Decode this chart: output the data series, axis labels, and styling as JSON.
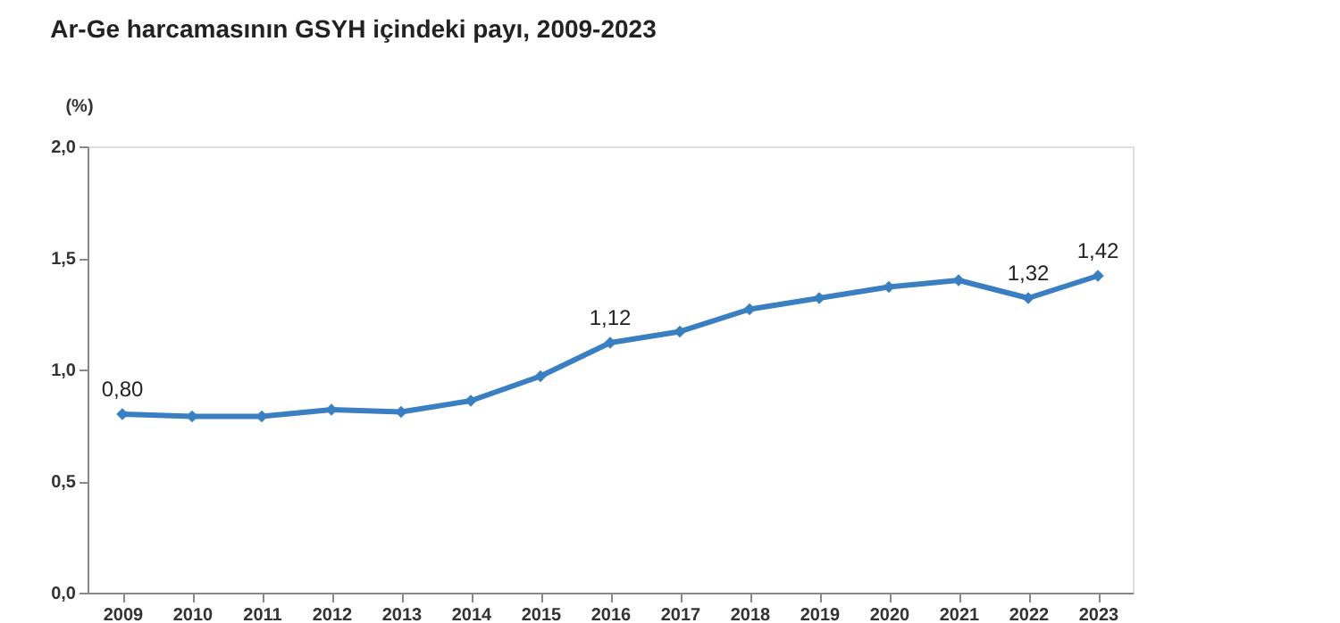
{
  "chart_data": {
    "type": "line",
    "title": "Ar-Ge harcamasının GSYH içindeki payı, 2009-2023",
    "ylabel": "(%)",
    "categories": [
      "2009",
      "2010",
      "2011",
      "2012",
      "2013",
      "2014",
      "2015",
      "2016",
      "2017",
      "2018",
      "2019",
      "2020",
      "2021",
      "2022",
      "2023"
    ],
    "series": [
      {
        "color": "#3a7fc1",
        "values": [
          0.8,
          0.79,
          0.79,
          0.82,
          0.81,
          0.86,
          0.97,
          1.12,
          1.17,
          1.27,
          1.32,
          1.37,
          1.4,
          1.32,
          1.42
        ],
        "value_labels": [
          "0,80",
          null,
          null,
          null,
          null,
          null,
          null,
          "1,12",
          null,
          null,
          null,
          null,
          null,
          "1,32",
          "1,42"
        ]
      }
    ],
    "ylim": [
      0,
      2
    ],
    "yticks": [
      {
        "value": 0,
        "label": "0,0"
      },
      {
        "value": 0.5,
        "label": "0,5"
      },
      {
        "value": 1,
        "label": "1,0"
      },
      {
        "value": 1.5,
        "label": "1,5"
      },
      {
        "value": 2,
        "label": "2,0"
      }
    ],
    "grid": false,
    "legend": false,
    "marker": "diamond",
    "line_style": "solid"
  }
}
